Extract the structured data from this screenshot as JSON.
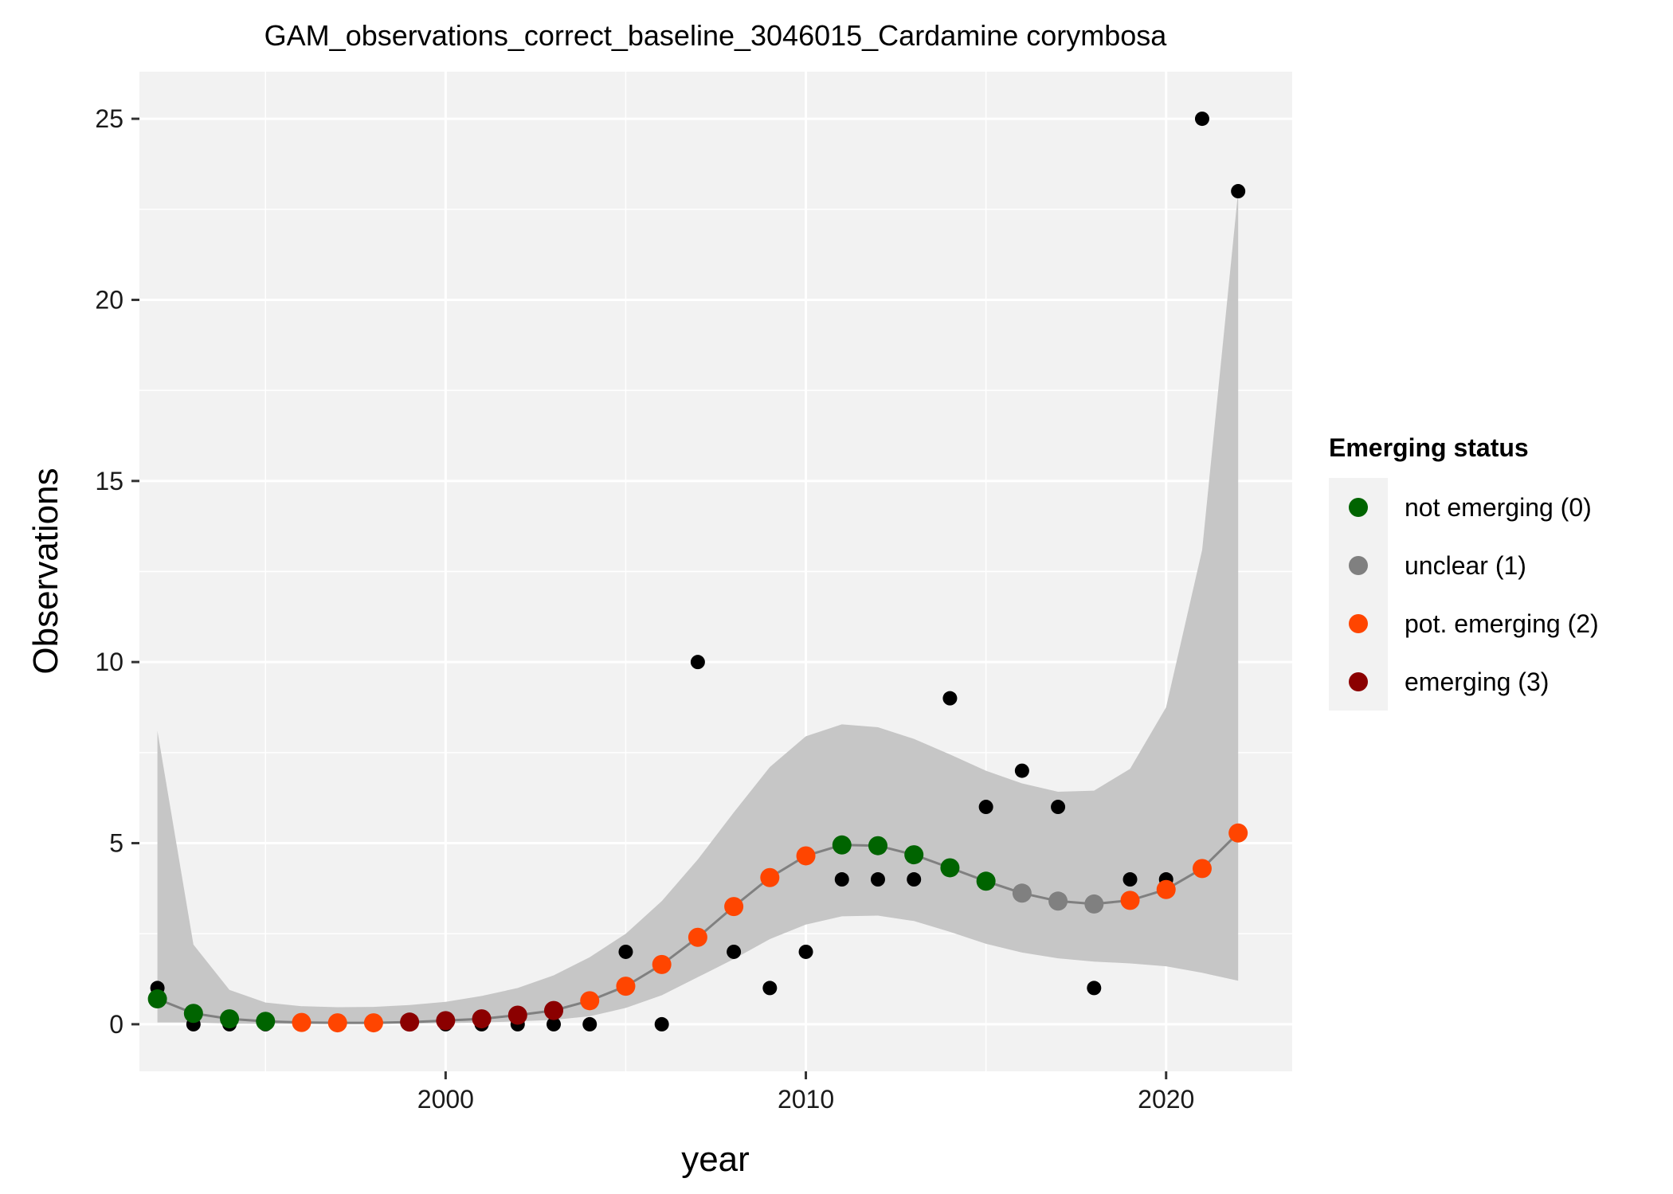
{
  "chart_data": {
    "type": "scatter",
    "title": "GAM_observations_correct_baseline_3046015_Cardamine corymbosa",
    "xlabel": "year",
    "ylabel": "Observations",
    "xlim": [
      1991.5,
      2023.5
    ],
    "ylim": [
      -1.3,
      26.3
    ],
    "x_ticks": [
      2000,
      2010,
      2020
    ],
    "y_ticks": [
      0,
      5,
      10,
      15,
      20,
      25
    ],
    "grid": true,
    "legend": {
      "title": "Emerging status",
      "placement": "right",
      "entries": [
        {
          "label": "not emerging (0)",
          "color": "#006400"
        },
        {
          "label": "unclear (1)",
          "color": "#808080"
        },
        {
          "label": "pot. emerging (2)",
          "color": "#ff4500"
        },
        {
          "label": "emerging (3)",
          "color": "#8b0000"
        }
      ]
    },
    "observed": {
      "color": "#000000",
      "points": [
        [
          1992,
          1
        ],
        [
          1993,
          0
        ],
        [
          1994,
          0
        ],
        [
          1995,
          0
        ],
        [
          1996,
          0
        ],
        [
          1997,
          0
        ],
        [
          1998,
          0
        ],
        [
          1999,
          0
        ],
        [
          2000,
          0
        ],
        [
          2001,
          0
        ],
        [
          2002,
          0
        ],
        [
          2003,
          0
        ],
        [
          2004,
          0
        ],
        [
          2005,
          2
        ],
        [
          2006,
          0
        ],
        [
          2007,
          10
        ],
        [
          2008,
          2
        ],
        [
          2009,
          1
        ],
        [
          2010,
          2
        ],
        [
          2011,
          4
        ],
        [
          2012,
          4
        ],
        [
          2013,
          4
        ],
        [
          2014,
          9
        ],
        [
          2015,
          6
        ],
        [
          2016,
          7
        ],
        [
          2017,
          6
        ],
        [
          2018,
          1
        ],
        [
          2019,
          4
        ],
        [
          2020,
          4
        ],
        [
          2021,
          25
        ],
        [
          2022,
          23
        ]
      ]
    },
    "fit": {
      "line_color": "#808080",
      "band_color": "#c6c6c6",
      "x": [
        1992,
        1993,
        1994,
        1995,
        1996,
        1997,
        1998,
        1999,
        2000,
        2001,
        2002,
        2003,
        2004,
        2005,
        2006,
        2007,
        2008,
        2009,
        2010,
        2011,
        2012,
        2013,
        2014,
        2015,
        2016,
        2017,
        2018,
        2019,
        2020,
        2021,
        2022
      ],
      "y": [
        0.7,
        0.3,
        0.15,
        0.08,
        0.05,
        0.04,
        0.04,
        0.06,
        0.1,
        0.15,
        0.25,
        0.38,
        0.65,
        1.05,
        1.65,
        2.4,
        3.25,
        4.05,
        4.65,
        4.95,
        4.93,
        4.68,
        4.32,
        3.95,
        3.62,
        3.4,
        3.32,
        3.42,
        3.72,
        4.3,
        5.28
      ],
      "lower": [
        0.05,
        0.05,
        0.02,
        0.01,
        0.01,
        0.01,
        0.01,
        0.02,
        0.03,
        0.05,
        0.08,
        0.12,
        0.22,
        0.45,
        0.8,
        1.3,
        1.8,
        2.35,
        2.75,
        2.98,
        3.0,
        2.85,
        2.55,
        2.22,
        1.98,
        1.82,
        1.73,
        1.68,
        1.6,
        1.42,
        1.2
      ],
      "upper": [
        8.1,
        2.2,
        0.95,
        0.6,
        0.5,
        0.47,
        0.48,
        0.53,
        0.62,
        0.78,
        1.0,
        1.35,
        1.85,
        2.5,
        3.4,
        4.55,
        5.85,
        7.1,
        7.95,
        8.28,
        8.2,
        7.88,
        7.45,
        7.0,
        6.65,
        6.42,
        6.45,
        7.05,
        8.75,
        13.1,
        23.0
      ],
      "status": [
        0,
        0,
        0,
        0,
        2,
        2,
        2,
        3,
        3,
        3,
        3,
        3,
        2,
        2,
        2,
        2,
        2,
        2,
        2,
        0,
        0,
        0,
        0,
        0,
        1,
        1,
        1,
        2,
        2,
        2,
        2
      ]
    }
  }
}
